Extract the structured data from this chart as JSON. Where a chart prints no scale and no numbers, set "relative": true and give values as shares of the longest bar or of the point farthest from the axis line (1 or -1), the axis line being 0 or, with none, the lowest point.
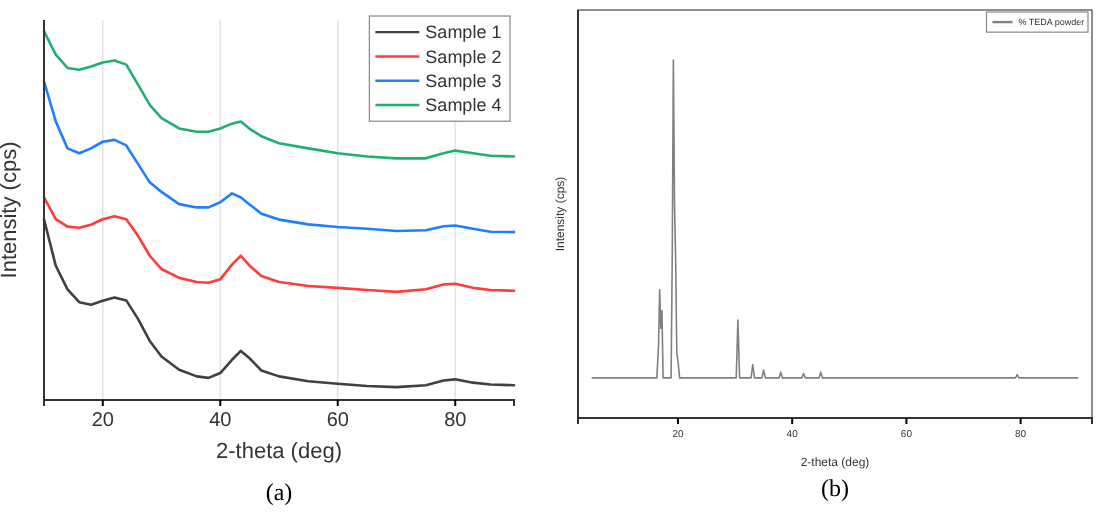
{
  "chart_data": [
    {
      "type": "line",
      "xlabel": "2-theta (deg)",
      "ylabel": "Intensity (cps)",
      "relative": true,
      "xlim": [
        10,
        90
      ],
      "xticks": [
        20,
        40,
        60,
        80
      ],
      "grid": "x",
      "legend": "top right",
      "annotations": [
        "(a)"
      ],
      "x": [
        10,
        12,
        14,
        16,
        18,
        20,
        22,
        24,
        26,
        28,
        30,
        33,
        36,
        38,
        40,
        42,
        43.5,
        45,
        47,
        50,
        55,
        60,
        65,
        70,
        75,
        78,
        80,
        83,
        86,
        90
      ],
      "series": [
        {
          "name": "Sample 1",
          "color": "#404040",
          "values": [
            0.49,
            0.364,
            0.3,
            0.265,
            0.258,
            0.269,
            0.278,
            0.27,
            0.22,
            0.16,
            0.118,
            0.082,
            0.064,
            0.06,
            0.073,
            0.109,
            0.133,
            0.113,
            0.08,
            0.064,
            0.051,
            0.044,
            0.038,
            0.035,
            0.04,
            0.053,
            0.056,
            0.047,
            0.042,
            0.04
          ]
        },
        {
          "name": "Sample 2",
          "color": "#ff3b3b",
          "values": [
            0.549,
            0.49,
            0.47,
            0.467,
            0.475,
            0.49,
            0.498,
            0.49,
            0.445,
            0.391,
            0.355,
            0.331,
            0.32,
            0.318,
            0.327,
            0.367,
            0.391,
            0.364,
            0.336,
            0.32,
            0.309,
            0.304,
            0.298,
            0.293,
            0.3,
            0.313,
            0.315,
            0.304,
            0.298,
            0.296
          ]
        },
        {
          "name": "Sample 3",
          "color": "#1f7fff",
          "values": [
            0.864,
            0.755,
            0.682,
            0.669,
            0.682,
            0.7,
            0.705,
            0.69,
            0.64,
            0.59,
            0.564,
            0.531,
            0.522,
            0.522,
            0.536,
            0.56,
            0.549,
            0.53,
            0.505,
            0.489,
            0.476,
            0.469,
            0.464,
            0.458,
            0.46,
            0.471,
            0.473,
            0.464,
            0.456,
            0.455
          ]
        },
        {
          "name": "Sample 4",
          "color": "#1fb070",
          "values": [
            1,
            0.936,
            0.9,
            0.895,
            0.904,
            0.915,
            0.92,
            0.909,
            0.855,
            0.8,
            0.764,
            0.736,
            0.727,
            0.727,
            0.736,
            0.749,
            0.755,
            0.735,
            0.715,
            0.696,
            0.682,
            0.669,
            0.66,
            0.655,
            0.655,
            0.669,
            0.676,
            0.669,
            0.662,
            0.66
          ]
        }
      ]
    },
    {
      "type": "line",
      "xlabel": "2-theta (deg)",
      "ylabel": "Intensity (cps)",
      "relative": true,
      "xlim": [
        2.5,
        92.5
      ],
      "xticks": [
        20,
        40,
        60,
        80
      ],
      "legend": "top right",
      "annotations": [
        "(b)"
      ],
      "x": [
        5,
        16.3,
        16.6,
        16.8,
        17.0,
        17.2,
        17.4,
        18.8,
        19.0,
        19.2,
        19.4,
        19.6,
        19.8,
        20.0,
        20.3,
        30.2,
        30.5,
        30.8,
        32.8,
        33.1,
        33.4,
        34.7,
        35.0,
        35.3,
        37.7,
        38.0,
        38.3,
        41.7,
        42.0,
        42.3,
        44.7,
        45.0,
        45.3,
        79.1,
        79.4,
        79.7,
        90
      ],
      "series": [
        {
          "name": "% TEDA powder",
          "color": "#808080",
          "values": [
            0.112,
            0.112,
            0.2,
            0.358,
            0.25,
            0.3,
            0.112,
            0.112,
            0.45,
            1,
            0.6,
            0.44,
            0.18,
            0.16,
            0.112,
            0.112,
            0.274,
            0.112,
            0.112,
            0.149,
            0.112,
            0.112,
            0.134,
            0.112,
            0.112,
            0.128,
            0.112,
            0.112,
            0.124,
            0.112,
            0.112,
            0.128,
            0.112,
            0.112,
            0.121,
            0.112,
            0.112
          ]
        }
      ]
    }
  ]
}
